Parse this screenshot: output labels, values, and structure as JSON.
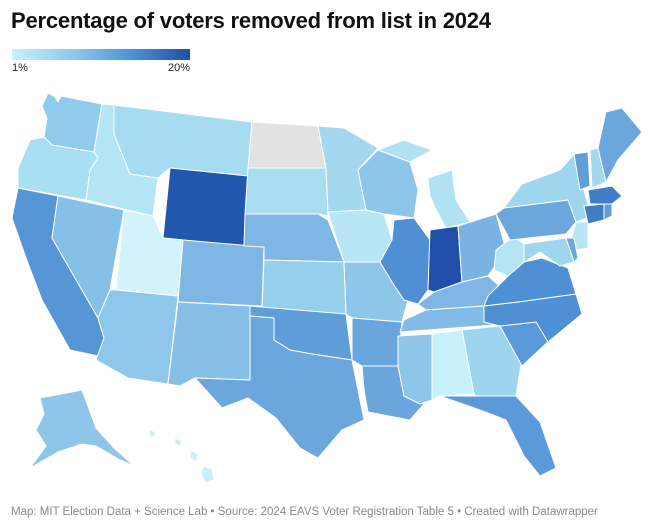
{
  "title": "Percentage of voters removed from list in 2024",
  "legend": {
    "min_label": "1%",
    "max_label": "20%",
    "colors": [
      "#c8f1fb",
      "#8ecbec",
      "#4f93d6",
      "#1f4fa8"
    ]
  },
  "footer": "Map: MIT Election Data + Science Lab • Source: 2024 EAVS Voter Registration Table 5 • Created with Datawrapper",
  "no_data_color": "#e2e2e2",
  "states": [
    {
      "abbr": "WA",
      "color": "#8fcbea"
    },
    {
      "abbr": "OR",
      "color": "#a9dff2"
    },
    {
      "abbr": "CA",
      "color": "#5796d6"
    },
    {
      "abbr": "NV",
      "color": "#86c0e8"
    },
    {
      "abbr": "ID",
      "color": "#b5e5f4"
    },
    {
      "abbr": "MT",
      "color": "#a6dbf1"
    },
    {
      "abbr": "WY",
      "color": "#2257ae"
    },
    {
      "abbr": "UT",
      "color": "#d2f3fc"
    },
    {
      "abbr": "AZ",
      "color": "#8fc7ec"
    },
    {
      "abbr": "CO",
      "color": "#7fb6e3"
    },
    {
      "abbr": "NM",
      "color": "#88bfe7"
    },
    {
      "abbr": "ND",
      "color": "#e2e2e2"
    },
    {
      "abbr": "SD",
      "color": "#a8dcf1"
    },
    {
      "abbr": "NE",
      "color": "#7fb6e3"
    },
    {
      "abbr": "KS",
      "color": "#96cfec"
    },
    {
      "abbr": "OK",
      "color": "#5f9ed9"
    },
    {
      "abbr": "TX",
      "color": "#6ba7dd"
    },
    {
      "abbr": "MN",
      "color": "#a3d8f0"
    },
    {
      "abbr": "IA",
      "color": "#b8e6f5"
    },
    {
      "abbr": "MO",
      "color": "#8ec6ea"
    },
    {
      "abbr": "AR",
      "color": "#6aa6dd"
    },
    {
      "abbr": "LA",
      "color": "#6aa6dd"
    },
    {
      "abbr": "WI",
      "color": "#8ec6ea"
    },
    {
      "abbr": "IL",
      "color": "#4f8fd4"
    },
    {
      "abbr": "MI",
      "color": "#b1e2f4"
    },
    {
      "abbr": "IN",
      "color": "#1f4fa8"
    },
    {
      "abbr": "OH",
      "color": "#79b3e2"
    },
    {
      "abbr": "KY",
      "color": "#7fb6e3"
    },
    {
      "abbr": "TN",
      "color": "#82bbe5"
    },
    {
      "abbr": "MS",
      "color": "#8ec6ea"
    },
    {
      "abbr": "AL",
      "color": "#c8f0fb"
    },
    {
      "abbr": "GA",
      "color": "#9dd5ef"
    },
    {
      "abbr": "FL",
      "color": "#5b9ad8"
    },
    {
      "abbr": "SC",
      "color": "#5b9ad8"
    },
    {
      "abbr": "NC",
      "color": "#4f8fd4"
    },
    {
      "abbr": "VA",
      "color": "#4f8fd4"
    },
    {
      "abbr": "WV",
      "color": "#b5e5f4"
    },
    {
      "abbr": "PA",
      "color": "#6ba7dd"
    },
    {
      "abbr": "NY",
      "color": "#9fd6ef"
    },
    {
      "abbr": "NJ",
      "color": "#b8e6f5"
    },
    {
      "abbr": "MD",
      "color": "#9fd6ef"
    },
    {
      "abbr": "DE",
      "color": "#6ba7dd"
    },
    {
      "abbr": "VT",
      "color": "#5f9ed9"
    },
    {
      "abbr": "NH",
      "color": "#a3d8f0"
    },
    {
      "abbr": "ME",
      "color": "#6ba7dd"
    },
    {
      "abbr": "MA",
      "color": "#3f7dc7"
    },
    {
      "abbr": "CT",
      "color": "#3f7dc7"
    },
    {
      "abbr": "RI",
      "color": "#5f9ed9"
    },
    {
      "abbr": "AK",
      "color": "#8ec6ea"
    },
    {
      "abbr": "HI",
      "color": "#c8f0fb"
    }
  ]
}
